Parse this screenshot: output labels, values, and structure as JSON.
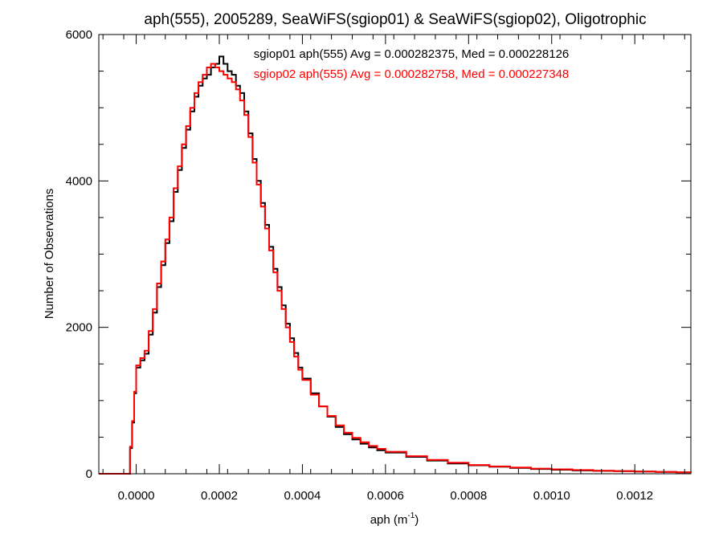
{
  "chart_data": {
    "type": "line",
    "title": "aph(555), 2005289, SeaWiFS(sgiop01) & SeaWiFS(sgiop02), Oligotrophic",
    "xlabel_main": "aph (m",
    "xlabel_sup": "-1",
    "xlabel_close": ")",
    "ylabel": "Number of Observations",
    "xlim": [
      -9e-05,
      0.001335
    ],
    "ylim": [
      0,
      6000
    ],
    "x_ticks": [
      0.0,
      0.0002,
      0.0004,
      0.0006,
      0.0008,
      0.001,
      0.0012
    ],
    "x_tick_labels": [
      "0.0000",
      "0.0002",
      "0.0004",
      "0.0006",
      "0.0008",
      "0.0010",
      "0.0012"
    ],
    "y_ticks": [
      0,
      2000,
      4000,
      6000
    ],
    "y_tick_labels": [
      "0",
      "2000",
      "4000",
      "6000"
    ],
    "grid": false,
    "series": [
      {
        "name": "sgiop01",
        "color": "#000000",
        "annotation": "sgiop01 aph(555) Avg = 0.000282375, Med = 0.000228126",
        "points": [
          [
            -9e-05,
            0
          ],
          [
            -2e-05,
            0
          ],
          [
            -1.5e-05,
            350
          ],
          [
            -1e-05,
            700
          ],
          [
            -5e-06,
            1100
          ],
          [
            0.0,
            1450
          ],
          [
            1e-05,
            1550
          ],
          [
            2e-05,
            1640
          ],
          [
            3e-05,
            1900
          ],
          [
            4e-05,
            2200
          ],
          [
            5e-05,
            2550
          ],
          [
            6e-05,
            2850
          ],
          [
            7e-05,
            3150
          ],
          [
            8e-05,
            3450
          ],
          [
            9e-05,
            3850
          ],
          [
            0.0001,
            4150
          ],
          [
            0.00011,
            4450
          ],
          [
            0.00012,
            4700
          ],
          [
            0.00013,
            4950
          ],
          [
            0.00014,
            5150
          ],
          [
            0.00015,
            5300
          ],
          [
            0.00016,
            5400
          ],
          [
            0.00017,
            5450
          ],
          [
            0.00018,
            5550
          ],
          [
            0.00019,
            5600
          ],
          [
            0.0002,
            5700
          ],
          [
            0.00021,
            5600
          ],
          [
            0.00022,
            5500
          ],
          [
            0.00023,
            5450
          ],
          [
            0.00024,
            5300
          ],
          [
            0.00025,
            5200
          ],
          [
            0.00026,
            4950
          ],
          [
            0.00027,
            4650
          ],
          [
            0.00028,
            4300
          ],
          [
            0.00029,
            4000
          ],
          [
            0.0003,
            3700
          ],
          [
            0.00031,
            3400
          ],
          [
            0.00032,
            3100
          ],
          [
            0.00033,
            2800
          ],
          [
            0.00034,
            2550
          ],
          [
            0.00035,
            2300
          ],
          [
            0.00036,
            2050
          ],
          [
            0.00037,
            1850
          ],
          [
            0.00038,
            1650
          ],
          [
            0.00039,
            1450
          ],
          [
            0.0004,
            1300
          ],
          [
            0.00042,
            1100
          ],
          [
            0.00044,
            920
          ],
          [
            0.00046,
            780
          ],
          [
            0.00048,
            640
          ],
          [
            0.0005,
            540
          ],
          [
            0.00052,
            470
          ],
          [
            0.00054,
            410
          ],
          [
            0.00056,
            360
          ],
          [
            0.00058,
            320
          ],
          [
            0.0006,
            290
          ],
          [
            0.00065,
            230
          ],
          [
            0.0007,
            180
          ],
          [
            0.00075,
            140
          ],
          [
            0.0008,
            115
          ],
          [
            0.00085,
            95
          ],
          [
            0.0009,
            80
          ],
          [
            0.00095,
            65
          ],
          [
            0.001,
            55
          ],
          [
            0.00105,
            45
          ],
          [
            0.0011,
            40
          ],
          [
            0.00115,
            35
          ],
          [
            0.0012,
            30
          ],
          [
            0.00125,
            25
          ],
          [
            0.0013,
            20
          ],
          [
            0.001335,
            18
          ]
        ]
      },
      {
        "name": "sgiop02",
        "color": "#ff0000",
        "annotation": "sgiop02 aph(555) Avg = 0.000282758, Med = 0.000227348",
        "points": [
          [
            -9e-05,
            0
          ],
          [
            -2e-05,
            0
          ],
          [
            -1.5e-05,
            370
          ],
          [
            -1e-05,
            720
          ],
          [
            -5e-06,
            1120
          ],
          [
            0.0,
            1480
          ],
          [
            1e-05,
            1580
          ],
          [
            2e-05,
            1680
          ],
          [
            3e-05,
            1950
          ],
          [
            4e-05,
            2250
          ],
          [
            5e-05,
            2600
          ],
          [
            6e-05,
            2900
          ],
          [
            7e-05,
            3200
          ],
          [
            8e-05,
            3500
          ],
          [
            9e-05,
            3900
          ],
          [
            0.0001,
            4200
          ],
          [
            0.00011,
            4500
          ],
          [
            0.00012,
            4750
          ],
          [
            0.00013,
            5000
          ],
          [
            0.00014,
            5200
          ],
          [
            0.00015,
            5350
          ],
          [
            0.00016,
            5450
          ],
          [
            0.00017,
            5550
          ],
          [
            0.00018,
            5600
          ],
          [
            0.00019,
            5550
          ],
          [
            0.0002,
            5500
          ],
          [
            0.00021,
            5450
          ],
          [
            0.00022,
            5400
          ],
          [
            0.00023,
            5350
          ],
          [
            0.00024,
            5250
          ],
          [
            0.00025,
            5100
          ],
          [
            0.00026,
            4900
          ],
          [
            0.00027,
            4600
          ],
          [
            0.00028,
            4250
          ],
          [
            0.00029,
            3950
          ],
          [
            0.0003,
            3650
          ],
          [
            0.00031,
            3350
          ],
          [
            0.00032,
            3050
          ],
          [
            0.00033,
            2750
          ],
          [
            0.00034,
            2500
          ],
          [
            0.00035,
            2250
          ],
          [
            0.00036,
            2000
          ],
          [
            0.00037,
            1800
          ],
          [
            0.00038,
            1600
          ],
          [
            0.00039,
            1420
          ],
          [
            0.0004,
            1280
          ],
          [
            0.00042,
            1080
          ],
          [
            0.00044,
            920
          ],
          [
            0.00046,
            790
          ],
          [
            0.00048,
            660
          ],
          [
            0.0005,
            560
          ],
          [
            0.00052,
            490
          ],
          [
            0.00054,
            430
          ],
          [
            0.00056,
            380
          ],
          [
            0.00058,
            340
          ],
          [
            0.0006,
            300
          ],
          [
            0.00065,
            240
          ],
          [
            0.0007,
            190
          ],
          [
            0.00075,
            150
          ],
          [
            0.0008,
            120
          ],
          [
            0.00085,
            100
          ],
          [
            0.0009,
            85
          ],
          [
            0.00095,
            70
          ],
          [
            0.001,
            60
          ],
          [
            0.00105,
            50
          ],
          [
            0.0011,
            42
          ],
          [
            0.00115,
            36
          ],
          [
            0.0012,
            30
          ],
          [
            0.00125,
            25
          ],
          [
            0.0013,
            20
          ],
          [
            0.001335,
            18
          ]
        ]
      }
    ]
  }
}
